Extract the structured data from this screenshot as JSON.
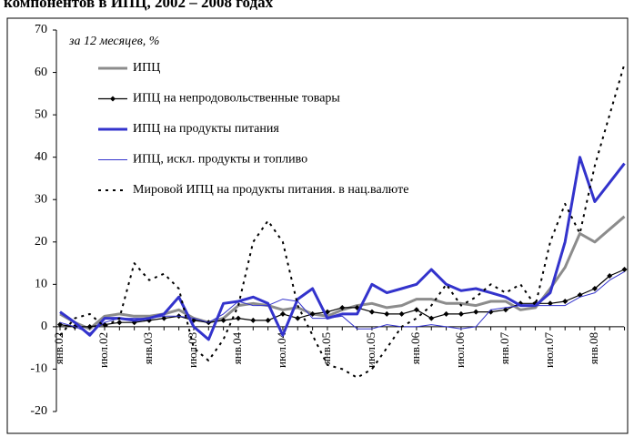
{
  "chart_data": {
    "type": "line",
    "title": "компонентов в ИПЦ, 2002 – 2008 годах",
    "annotation": "за 12 месяцев, %",
    "categories": [
      "янв.02",
      null,
      null,
      "июл.02",
      null,
      null,
      "янв.03",
      null,
      null,
      "июл.03",
      null,
      null,
      "янв.04",
      null,
      null,
      "июл.04",
      null,
      null,
      "янв.05",
      null,
      null,
      "июл.05",
      null,
      null,
      "янв.06",
      null,
      null,
      "июл.06",
      null,
      null,
      "янв.07",
      null,
      null,
      "июл.07",
      null,
      null,
      "янв.08",
      null,
      null
    ],
    "ylim": [
      -20,
      70
    ],
    "yticks": [
      -20,
      -10,
      0,
      10,
      20,
      30,
      40,
      50,
      60,
      70
    ],
    "series": [
      {
        "name": "ИПЦ",
        "color": "#8c8c8c",
        "values": [
          3,
          1,
          -0.5,
          2.5,
          3,
          2.5,
          2.5,
          3,
          4,
          2,
          1,
          2,
          5,
          5.5,
          5,
          4,
          4.5,
          3,
          2.5,
          4,
          5,
          5.5,
          4.5,
          5,
          6.5,
          6.5,
          5.5,
          5.5,
          5,
          6,
          6,
          4,
          4.5,
          9,
          14,
          22,
          20,
          23,
          26
        ]
      },
      {
        "name": "ИПЦ на непродовольственные товары",
        "color": "#000000",
        "values": [
          0.5,
          0,
          0,
          0.5,
          1,
          1,
          1.5,
          2,
          2.5,
          1.5,
          1,
          1.5,
          2,
          1.5,
          1.5,
          3,
          2,
          3,
          3.5,
          4.5,
          4.5,
          3.5,
          3,
          3,
          4,
          2,
          3,
          3,
          3.5,
          3.5,
          4,
          5.5,
          5.5,
          5.5,
          6,
          7.5,
          9,
          12,
          13.5
        ]
      },
      {
        "name": "ИПЦ на продукты питания",
        "color": "#3333cc",
        "values": [
          3.5,
          1,
          -2,
          2,
          2,
          1.5,
          2,
          3,
          7,
          0,
          -3,
          5.5,
          6,
          7,
          5.5,
          -2,
          6.5,
          9,
          2,
          3,
          3,
          10,
          8,
          9,
          10,
          13.5,
          10,
          8.5,
          9,
          8,
          7,
          5,
          5,
          8,
          20,
          40,
          29.5,
          34,
          38.5
        ]
      },
      {
        "name": "ИПЦ, искл. продукты и топливо",
        "color": "#3333cc",
        "values": [
          1,
          0,
          -1.5,
          1,
          2,
          2,
          2,
          2.5,
          2.5,
          2,
          1,
          3,
          6,
          5,
          5,
          6.5,
          6,
          2,
          2,
          2.5,
          -0.5,
          -0.5,
          0.5,
          0,
          0,
          0.5,
          0,
          -0.5,
          0,
          4,
          4.5,
          5,
          5,
          5,
          5,
          7,
          8,
          11,
          13
        ]
      },
      {
        "name": "Мировой ИПЦ на продукты питания. в нац.валюте",
        "color": "#000000",
        "values": [
          -2,
          2,
          3,
          0,
          2,
          15,
          11,
          12.5,
          9,
          -5,
          -8,
          -3,
          5,
          20,
          25,
          20,
          5,
          -2,
          -9,
          -10,
          -12,
          -10,
          -5,
          0,
          2,
          5,
          10,
          5,
          7,
          10,
          8,
          10,
          5,
          20,
          29,
          22,
          38,
          50,
          62
        ]
      }
    ]
  }
}
